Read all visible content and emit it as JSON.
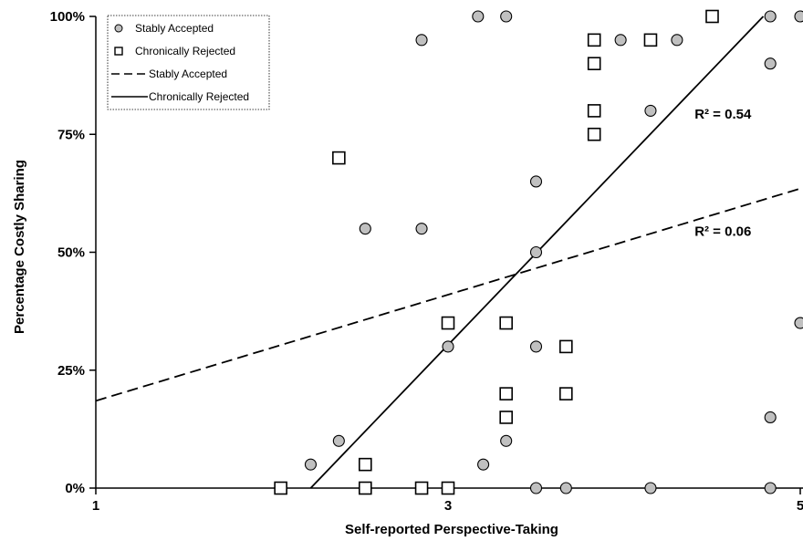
{
  "chart_data": {
    "type": "scatter",
    "xlabel": "Self-reported Perspective-Taking",
    "ylabel": "Percentage Costly Sharing",
    "xlim": [
      1,
      5
    ],
    "ylim": [
      0,
      100
    ],
    "x_ticks": [
      "1",
      "3",
      "5"
    ],
    "y_ticks": [
      "0%",
      "25%",
      "50%",
      "75%",
      "100%"
    ],
    "grid": false,
    "legend_position": "top-left",
    "legend": {
      "items": [
        {
          "label": "Stably Accepted",
          "symbol": "circle"
        },
        {
          "label": "Chronically Rejected",
          "symbol": "square"
        },
        {
          "label": "Stably Accepted",
          "symbol": "dashed-line"
        },
        {
          "label": "Chronically Rejected",
          "symbol": "solid-line"
        }
      ]
    },
    "series": [
      {
        "name": "Stably Accepted",
        "marker": "circle",
        "color": "#c0c0c0",
        "points": [
          [
            2.53,
            55
          ],
          [
            2.85,
            55
          ],
          [
            2.85,
            95
          ],
          [
            3.17,
            100
          ],
          [
            3.33,
            100
          ],
          [
            2.38,
            10
          ],
          [
            2.22,
            5
          ],
          [
            3.0,
            30
          ],
          [
            3.33,
            10
          ],
          [
            3.2,
            5
          ],
          [
            3.5,
            65
          ],
          [
            3.5,
            50
          ],
          [
            3.5,
            30
          ],
          [
            3.5,
            0
          ],
          [
            3.67,
            0
          ],
          [
            3.98,
            95
          ],
          [
            4.3,
            95
          ],
          [
            4.15,
            80
          ],
          [
            4.15,
            0
          ],
          [
            4.83,
            100
          ],
          [
            4.83,
            90
          ],
          [
            5.0,
            100
          ],
          [
            5.0,
            35
          ],
          [
            4.83,
            15
          ],
          [
            4.83,
            0
          ]
        ]
      },
      {
        "name": "Chronically Rejected",
        "marker": "square",
        "color": "#ffffff",
        "points": [
          [
            2.38,
            70
          ],
          [
            2.05,
            0
          ],
          [
            2.53,
            5
          ],
          [
            2.53,
            0
          ],
          [
            2.85,
            0
          ],
          [
            3.0,
            35
          ],
          [
            3.0,
            0
          ],
          [
            3.33,
            35
          ],
          [
            3.33,
            20
          ],
          [
            3.33,
            15
          ],
          [
            3.67,
            30
          ],
          [
            3.67,
            20
          ],
          [
            3.83,
            95
          ],
          [
            3.83,
            90
          ],
          [
            3.83,
            80
          ],
          [
            3.83,
            75
          ],
          [
            4.15,
            95
          ],
          [
            4.5,
            100
          ]
        ]
      }
    ],
    "trendlines": [
      {
        "series": "Stably Accepted",
        "style": "dashed",
        "x": [
          1,
          5
        ],
        "y": [
          18.5,
          63.5
        ],
        "label": "R² = 0.06",
        "label_at": [
          4.4,
          53.5
        ]
      },
      {
        "series": "Chronically Rejected",
        "style": "solid",
        "x": [
          2.22,
          4.79
        ],
        "y": [
          0,
          100
        ],
        "label": "R² = 0.54",
        "label_at": [
          4.4,
          78.3
        ]
      }
    ]
  }
}
